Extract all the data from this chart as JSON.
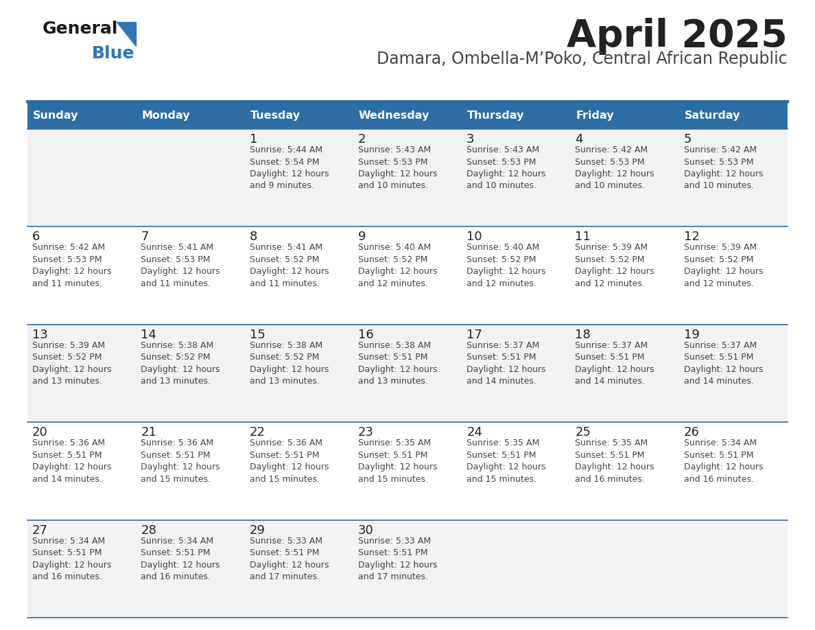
{
  "title": "April 2025",
  "subtitle": "Damara, Ombella-M’Poko, Central African Republic",
  "days_of_week": [
    "Sunday",
    "Monday",
    "Tuesday",
    "Wednesday",
    "Thursday",
    "Friday",
    "Saturday"
  ],
  "header_bg": "#2E6DA4",
  "header_text": "#FFFFFF",
  "row_bg_even": "#F2F2F2",
  "row_bg_odd": "#FFFFFF",
  "cell_text_color": "#444444",
  "day_num_color": "#222222",
  "border_color": "#2E6DA4",
  "title_color": "#222222",
  "subtitle_color": "#444444",
  "logo_general_color": "#1a1a1a",
  "logo_blue_color": "#2E75B6",
  "calendar_data": [
    [
      {
        "day": null,
        "info": ""
      },
      {
        "day": null,
        "info": ""
      },
      {
        "day": 1,
        "info": "Sunrise: 5:44 AM\nSunset: 5:54 PM\nDaylight: 12 hours\nand 9 minutes."
      },
      {
        "day": 2,
        "info": "Sunrise: 5:43 AM\nSunset: 5:53 PM\nDaylight: 12 hours\nand 10 minutes."
      },
      {
        "day": 3,
        "info": "Sunrise: 5:43 AM\nSunset: 5:53 PM\nDaylight: 12 hours\nand 10 minutes."
      },
      {
        "day": 4,
        "info": "Sunrise: 5:42 AM\nSunset: 5:53 PM\nDaylight: 12 hours\nand 10 minutes."
      },
      {
        "day": 5,
        "info": "Sunrise: 5:42 AM\nSunset: 5:53 PM\nDaylight: 12 hours\nand 10 minutes."
      }
    ],
    [
      {
        "day": 6,
        "info": "Sunrise: 5:42 AM\nSunset: 5:53 PM\nDaylight: 12 hours\nand 11 minutes."
      },
      {
        "day": 7,
        "info": "Sunrise: 5:41 AM\nSunset: 5:53 PM\nDaylight: 12 hours\nand 11 minutes."
      },
      {
        "day": 8,
        "info": "Sunrise: 5:41 AM\nSunset: 5:52 PM\nDaylight: 12 hours\nand 11 minutes."
      },
      {
        "day": 9,
        "info": "Sunrise: 5:40 AM\nSunset: 5:52 PM\nDaylight: 12 hours\nand 12 minutes."
      },
      {
        "day": 10,
        "info": "Sunrise: 5:40 AM\nSunset: 5:52 PM\nDaylight: 12 hours\nand 12 minutes."
      },
      {
        "day": 11,
        "info": "Sunrise: 5:39 AM\nSunset: 5:52 PM\nDaylight: 12 hours\nand 12 minutes."
      },
      {
        "day": 12,
        "info": "Sunrise: 5:39 AM\nSunset: 5:52 PM\nDaylight: 12 hours\nand 12 minutes."
      }
    ],
    [
      {
        "day": 13,
        "info": "Sunrise: 5:39 AM\nSunset: 5:52 PM\nDaylight: 12 hours\nand 13 minutes."
      },
      {
        "day": 14,
        "info": "Sunrise: 5:38 AM\nSunset: 5:52 PM\nDaylight: 12 hours\nand 13 minutes."
      },
      {
        "day": 15,
        "info": "Sunrise: 5:38 AM\nSunset: 5:52 PM\nDaylight: 12 hours\nand 13 minutes."
      },
      {
        "day": 16,
        "info": "Sunrise: 5:38 AM\nSunset: 5:51 PM\nDaylight: 12 hours\nand 13 minutes."
      },
      {
        "day": 17,
        "info": "Sunrise: 5:37 AM\nSunset: 5:51 PM\nDaylight: 12 hours\nand 14 minutes."
      },
      {
        "day": 18,
        "info": "Sunrise: 5:37 AM\nSunset: 5:51 PM\nDaylight: 12 hours\nand 14 minutes."
      },
      {
        "day": 19,
        "info": "Sunrise: 5:37 AM\nSunset: 5:51 PM\nDaylight: 12 hours\nand 14 minutes."
      }
    ],
    [
      {
        "day": 20,
        "info": "Sunrise: 5:36 AM\nSunset: 5:51 PM\nDaylight: 12 hours\nand 14 minutes."
      },
      {
        "day": 21,
        "info": "Sunrise: 5:36 AM\nSunset: 5:51 PM\nDaylight: 12 hours\nand 15 minutes."
      },
      {
        "day": 22,
        "info": "Sunrise: 5:36 AM\nSunset: 5:51 PM\nDaylight: 12 hours\nand 15 minutes."
      },
      {
        "day": 23,
        "info": "Sunrise: 5:35 AM\nSunset: 5:51 PM\nDaylight: 12 hours\nand 15 minutes."
      },
      {
        "day": 24,
        "info": "Sunrise: 5:35 AM\nSunset: 5:51 PM\nDaylight: 12 hours\nand 15 minutes."
      },
      {
        "day": 25,
        "info": "Sunrise: 5:35 AM\nSunset: 5:51 PM\nDaylight: 12 hours\nand 16 minutes."
      },
      {
        "day": 26,
        "info": "Sunrise: 5:34 AM\nSunset: 5:51 PM\nDaylight: 12 hours\nand 16 minutes."
      }
    ],
    [
      {
        "day": 27,
        "info": "Sunrise: 5:34 AM\nSunset: 5:51 PM\nDaylight: 12 hours\nand 16 minutes."
      },
      {
        "day": 28,
        "info": "Sunrise: 5:34 AM\nSunset: 5:51 PM\nDaylight: 12 hours\nand 16 minutes."
      },
      {
        "day": 29,
        "info": "Sunrise: 5:33 AM\nSunset: 5:51 PM\nDaylight: 12 hours\nand 17 minutes."
      },
      {
        "day": 30,
        "info": "Sunrise: 5:33 AM\nSunset: 5:51 PM\nDaylight: 12 hours\nand 17 minutes."
      },
      {
        "day": null,
        "info": ""
      },
      {
        "day": null,
        "info": ""
      },
      {
        "day": null,
        "info": ""
      }
    ]
  ]
}
